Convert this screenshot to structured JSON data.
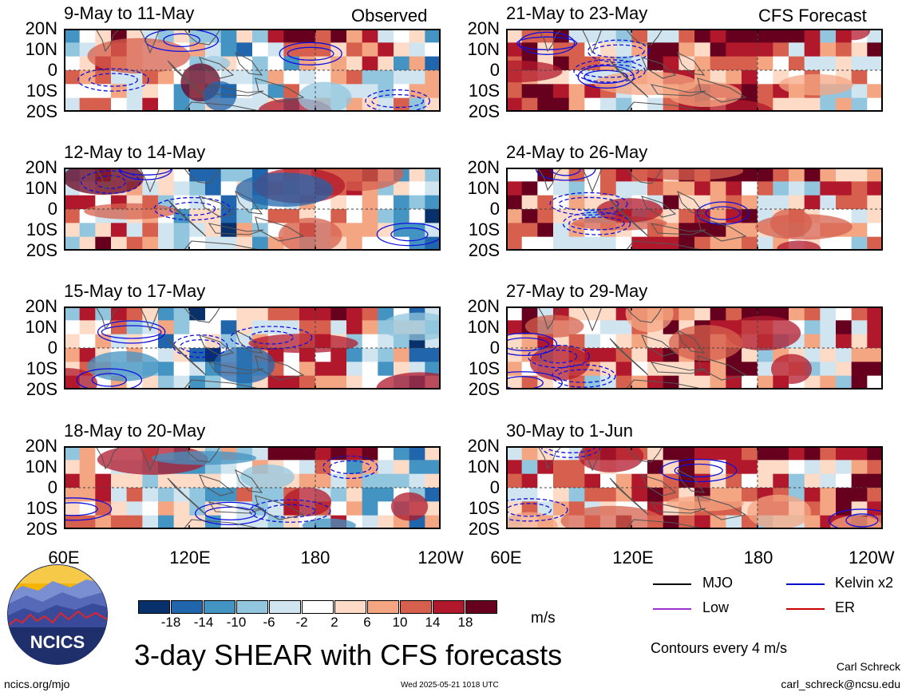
{
  "header": {
    "observed_label": "Observed",
    "forecast_label": "CFS Forecast"
  },
  "panels_left": [
    {
      "title": "9-May to 11-May"
    },
    {
      "title": "12-May to 14-May"
    },
    {
      "title": "15-May to 17-May"
    },
    {
      "title": "18-May to 20-May"
    }
  ],
  "panels_right": [
    {
      "title": "21-May to 23-May"
    },
    {
      "title": "24-May to 26-May"
    },
    {
      "title": "27-May to 29-May"
    },
    {
      "title": "30-May to 1-Jun"
    }
  ],
  "lat_labels": [
    "20N",
    "10N",
    "0",
    "10S",
    "20S"
  ],
  "lon_labels": [
    "60E",
    "120E",
    "180",
    "120W"
  ],
  "colorbar": {
    "ticks": [
      "-18",
      "-14",
      "-10",
      "-6",
      "-2",
      "2",
      "6",
      "10",
      "14",
      "18"
    ],
    "colors": [
      "#08306b",
      "#2166ac",
      "#4393c3",
      "#92c5de",
      "#d1e5f0",
      "#ffffff",
      "#fddbc7",
      "#f4a582",
      "#d6604d",
      "#b2182b",
      "#67001f"
    ],
    "units": "m/s"
  },
  "legend": {
    "mjo": {
      "label": "MJO",
      "color": "#000000"
    },
    "kelvin": {
      "label": "Kelvin x2",
      "color": "#0000cc"
    },
    "low": {
      "label": "Low",
      "color": "#9933cc"
    },
    "er": {
      "label": "ER",
      "color": "#cc0000"
    },
    "contours_note": "Contours every 4 m/s"
  },
  "footer": {
    "title": "3-day SHEAR with CFS forecasts",
    "logo_text": "NCICS",
    "url": "ncics.org/mjo",
    "timestamp": "Wed 2025-05-21 1018 UTC",
    "author": "Carl Schreck",
    "email": "carl_schreck@ncsu.edu"
  }
}
